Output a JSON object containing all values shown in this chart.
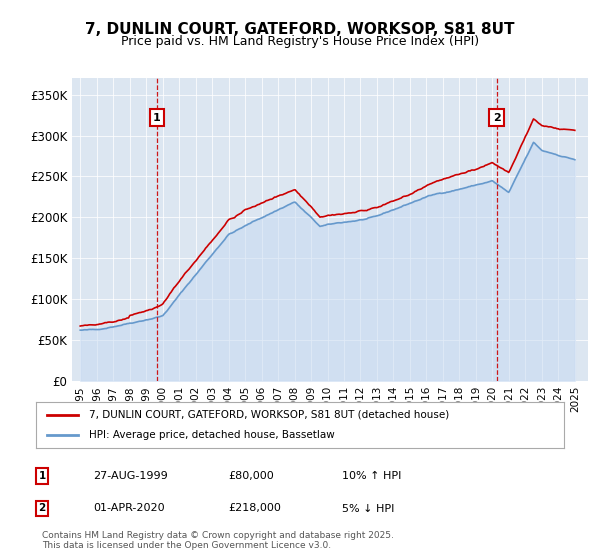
{
  "title": "7, DUNLIN COURT, GATEFORD, WORKSOP, S81 8UT",
  "subtitle": "Price paid vs. HM Land Registry's House Price Index (HPI)",
  "plot_bg_color": "#dce6f1",
  "line1_color": "#cc0000",
  "line2_color": "#6699cc",
  "line2_fill_color": "#c5d9f1",
  "ylim": [
    0,
    370000
  ],
  "yticks": [
    0,
    50000,
    100000,
    150000,
    200000,
    250000,
    300000,
    350000
  ],
  "ytick_labels": [
    "£0",
    "£50K",
    "£100K",
    "£150K",
    "£200K",
    "£250K",
    "£300K",
    "£350K"
  ],
  "legend1_label": "7, DUNLIN COURT, GATEFORD, WORKSOP, S81 8UT (detached house)",
  "legend2_label": "HPI: Average price, detached house, Bassetlaw",
  "annotation1_date": "27-AUG-1999",
  "annotation1_price": "£80,000",
  "annotation1_hpi": "10% ↑ HPI",
  "annotation2_date": "01-APR-2020",
  "annotation2_price": "£218,000",
  "annotation2_hpi": "5% ↓ HPI",
  "footer": "Contains HM Land Registry data © Crown copyright and database right 2025.\nThis data is licensed under the Open Government Licence v3.0.",
  "sale1_x": 1999.65,
  "sale2_x": 2020.25
}
